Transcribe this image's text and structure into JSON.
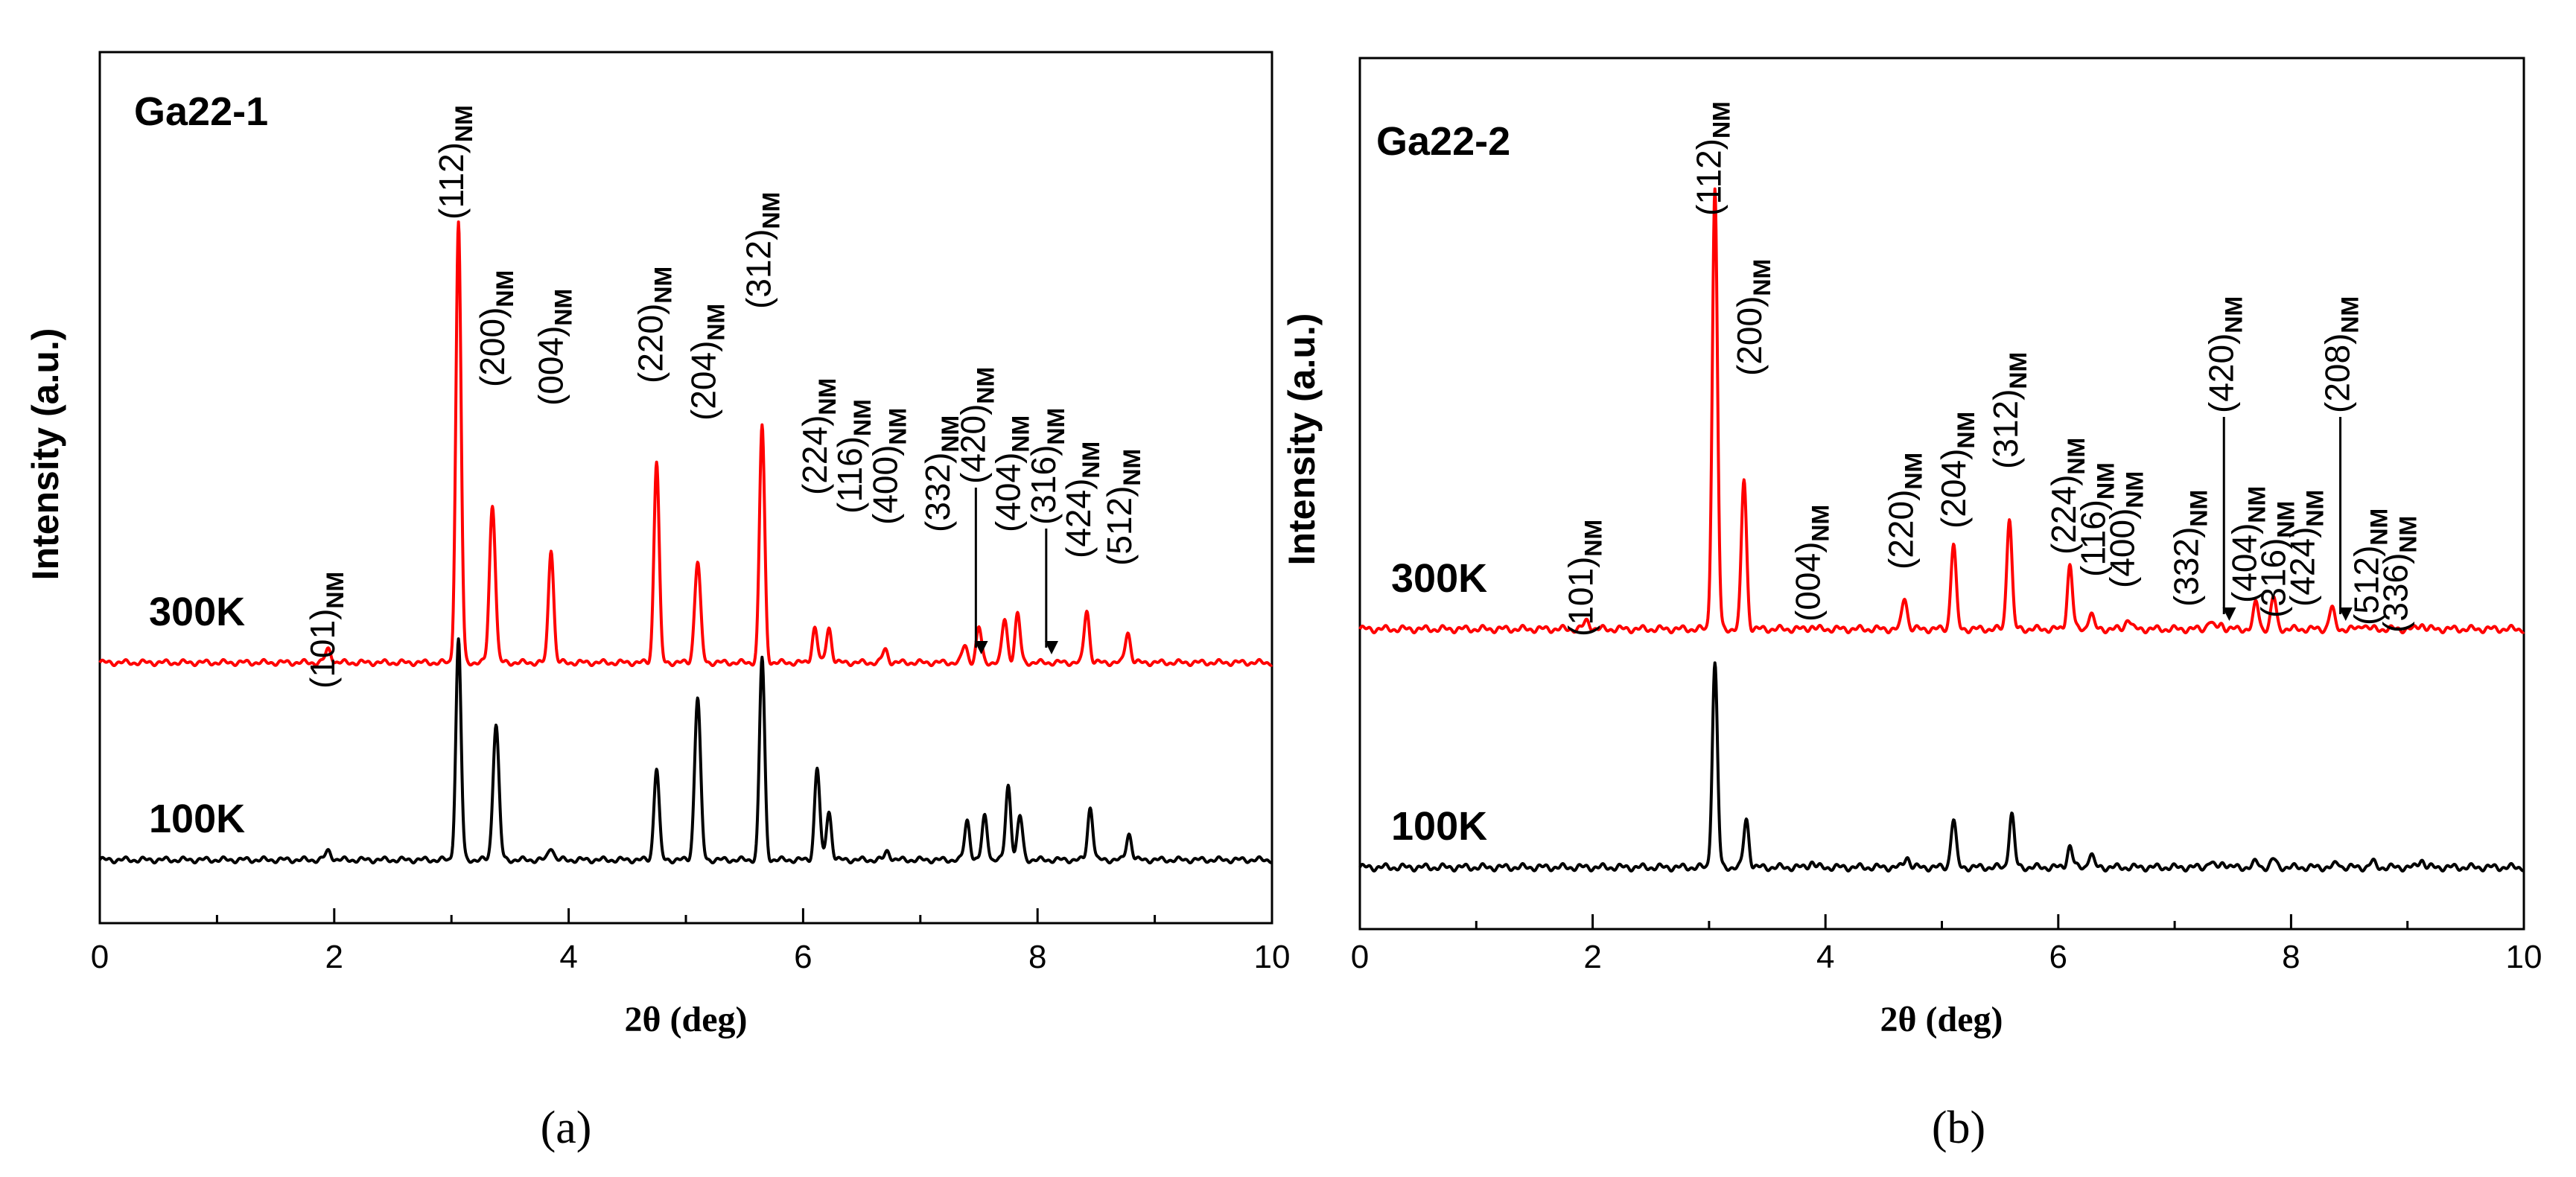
{
  "figure": {
    "panel_labels": [
      "(a)",
      "(b)"
    ]
  },
  "chart_data": [
    {
      "type": "line",
      "sample_label": "Ga22-1",
      "title": "",
      "xlabel": "2θ (deg)",
      "ylabel": "Intensity (a.u.)",
      "xlim": [
        0,
        10
      ],
      "x_ticks": [
        0,
        2,
        4,
        6,
        8,
        10
      ],
      "x_minor_step": 1,
      "grid": false,
      "series": [
        {
          "name": "300K",
          "color": "#ff0000",
          "baseline": 0.5,
          "peaks": [
            {
              "x": 1.95,
              "h": 0.03,
              "w": 0.025
            },
            {
              "x": 3.06,
              "h": 1.0,
              "w": 0.022
            },
            {
              "x": 3.35,
              "h": 0.36,
              "w": 0.025
            },
            {
              "x": 3.85,
              "h": 0.26,
              "w": 0.022
            },
            {
              "x": 4.75,
              "h": 0.46,
              "w": 0.022
            },
            {
              "x": 5.1,
              "h": 0.23,
              "w": 0.025
            },
            {
              "x": 5.65,
              "h": 0.54,
              "w": 0.022
            },
            {
              "x": 6.1,
              "h": 0.08,
              "w": 0.022
            },
            {
              "x": 6.22,
              "h": 0.08,
              "w": 0.022
            },
            {
              "x": 6.7,
              "h": 0.03,
              "w": 0.022
            },
            {
              "x": 7.38,
              "h": 0.04,
              "w": 0.022
            },
            {
              "x": 7.5,
              "h": 0.08,
              "w": 0.022
            },
            {
              "x": 7.72,
              "h": 0.1,
              "w": 0.022
            },
            {
              "x": 7.83,
              "h": 0.11,
              "w": 0.022
            },
            {
              "x": 8.42,
              "h": 0.12,
              "w": 0.022
            },
            {
              "x": 8.77,
              "h": 0.07,
              "w": 0.022
            }
          ]
        },
        {
          "name": "100K",
          "color": "#000000",
          "baseline": 0.05,
          "peaks": [
            {
              "x": 1.95,
              "h": 0.02,
              "w": 0.025
            },
            {
              "x": 3.06,
              "h": 0.5,
              "w": 0.022
            },
            {
              "x": 3.38,
              "h": 0.31,
              "w": 0.025
            },
            {
              "x": 3.85,
              "h": 0.03,
              "w": 0.022
            },
            {
              "x": 4.75,
              "h": 0.21,
              "w": 0.022
            },
            {
              "x": 5.1,
              "h": 0.37,
              "w": 0.025
            },
            {
              "x": 5.65,
              "h": 0.46,
              "w": 0.022
            },
            {
              "x": 6.12,
              "h": 0.21,
              "w": 0.022
            },
            {
              "x": 6.22,
              "h": 0.11,
              "w": 0.022
            },
            {
              "x": 6.72,
              "h": 0.02,
              "w": 0.022
            },
            {
              "x": 7.4,
              "h": 0.09,
              "w": 0.022
            },
            {
              "x": 7.55,
              "h": 0.1,
              "w": 0.022
            },
            {
              "x": 7.75,
              "h": 0.17,
              "w": 0.022
            },
            {
              "x": 7.85,
              "h": 0.1,
              "w": 0.022
            },
            {
              "x": 8.45,
              "h": 0.12,
              "w": 0.022
            },
            {
              "x": 8.78,
              "h": 0.06,
              "w": 0.022
            }
          ]
        }
      ],
      "peak_labels": [
        {
          "hkl": "(101)",
          "sub": "NM",
          "x": 2.0
        },
        {
          "hkl": "(112)",
          "sub": "NM",
          "x": 3.1
        },
        {
          "hkl": "(200)",
          "sub": "NM",
          "x": 3.45
        },
        {
          "hkl": "(004)",
          "sub": "NM",
          "x": 3.95
        },
        {
          "hkl": "(220)",
          "sub": "NM",
          "x": 4.8
        },
        {
          "hkl": "(204)",
          "sub": "NM",
          "x": 5.25
        },
        {
          "hkl": "(312)",
          "sub": "NM",
          "x": 5.72
        },
        {
          "hkl": "(224)",
          "sub": "NM",
          "x": 6.2
        },
        {
          "hkl": "(116)",
          "sub": "NM",
          "x": 6.5
        },
        {
          "hkl": "(400)",
          "sub": "NM",
          "x": 6.8
        },
        {
          "hkl": "(332)",
          "sub": "NM",
          "x": 7.25
        },
        {
          "hkl": "(420)",
          "sub": "NM",
          "x": 7.55
        },
        {
          "hkl": "(404)",
          "sub": "NM",
          "x": 7.85
        },
        {
          "hkl": "(316)",
          "sub": "NM",
          "x": 8.15
        },
        {
          "hkl": "(424)",
          "sub": "NM",
          "x": 8.45
        },
        {
          "hkl": "(512)",
          "sub": "NM",
          "x": 8.8
        }
      ]
    },
    {
      "type": "line",
      "sample_label": "Ga22-2",
      "title": "",
      "xlabel": "2θ (deg)",
      "ylabel": "Intensity (a.u.)",
      "xlim": [
        0,
        10
      ],
      "x_ticks": [
        0,
        2,
        4,
        6,
        8,
        10
      ],
      "x_minor_step": 1,
      "grid": false,
      "series": [
        {
          "name": "300K",
          "color": "#ff0000",
          "baseline": 0.46,
          "peaks": [
            {
              "x": 1.95,
              "h": 0.015,
              "w": 0.025
            },
            {
              "x": 3.05,
              "h": 0.82,
              "w": 0.022
            },
            {
              "x": 3.3,
              "h": 0.28,
              "w": 0.022
            },
            {
              "x": 3.88,
              "h": 0.005,
              "w": 0.022
            },
            {
              "x": 4.68,
              "h": 0.06,
              "w": 0.022
            },
            {
              "x": 5.1,
              "h": 0.16,
              "w": 0.022
            },
            {
              "x": 5.58,
              "h": 0.21,
              "w": 0.022
            },
            {
              "x": 6.1,
              "h": 0.12,
              "w": 0.022
            },
            {
              "x": 6.28,
              "h": 0.03,
              "w": 0.022
            },
            {
              "x": 6.6,
              "h": 0.02,
              "w": 0.022
            },
            {
              "x": 7.3,
              "h": 0.015,
              "w": 0.022
            },
            {
              "x": 7.4,
              "h": 0.01,
              "w": 0.022
            },
            {
              "x": 7.7,
              "h": 0.05,
              "w": 0.022
            },
            {
              "x": 7.85,
              "h": 0.06,
              "w": 0.022
            },
            {
              "x": 8.35,
              "h": 0.04,
              "w": 0.022
            },
            {
              "x": 8.62,
              "h": 0.01,
              "w": 0.022
            },
            {
              "x": 9.12,
              "h": 0.01,
              "w": 0.022
            }
          ]
        },
        {
          "name": "100K",
          "color": "#000000",
          "baseline": 0.06,
          "peaks": [
            {
              "x": 3.05,
              "h": 0.38,
              "w": 0.022
            },
            {
              "x": 3.32,
              "h": 0.09,
              "w": 0.022
            },
            {
              "x": 3.88,
              "h": 0.01,
              "w": 0.022
            },
            {
              "x": 4.7,
              "h": 0.02,
              "w": 0.022
            },
            {
              "x": 5.1,
              "h": 0.09,
              "w": 0.022
            },
            {
              "x": 5.6,
              "h": 0.1,
              "w": 0.022
            },
            {
              "x": 6.1,
              "h": 0.04,
              "w": 0.022
            },
            {
              "x": 6.28,
              "h": 0.025,
              "w": 0.022
            },
            {
              "x": 7.3,
              "h": 0.01,
              "w": 0.022
            },
            {
              "x": 7.42,
              "h": 0.01,
              "w": 0.022
            },
            {
              "x": 7.7,
              "h": 0.01,
              "w": 0.022
            },
            {
              "x": 7.85,
              "h": 0.015,
              "w": 0.022
            },
            {
              "x": 8.4,
              "h": 0.008,
              "w": 0.022
            },
            {
              "x": 8.7,
              "h": 0.01,
              "w": 0.022
            },
            {
              "x": 9.12,
              "h": 0.015,
              "w": 0.022
            }
          ]
        }
      ],
      "peak_labels": [
        {
          "hkl": "(101)",
          "sub": "NM",
          "x": 2.0
        },
        {
          "hkl": "(112)",
          "sub": "NM",
          "x": 3.1
        },
        {
          "hkl": "(200)",
          "sub": "NM",
          "x": 3.45
        },
        {
          "hkl": "(004)",
          "sub": "NM",
          "x": 3.95
        },
        {
          "hkl": "(220)",
          "sub": "NM",
          "x": 4.75
        },
        {
          "hkl": "(204)",
          "sub": "NM",
          "x": 5.2
        },
        {
          "hkl": "(312)",
          "sub": "NM",
          "x": 5.65
        },
        {
          "hkl": "(224)",
          "sub": "NM",
          "x": 6.15
        },
        {
          "hkl": "(116)",
          "sub": "NM",
          "x": 6.4
        },
        {
          "hkl": "(400)",
          "sub": "NM",
          "x": 6.65
        },
        {
          "hkl": "(332)",
          "sub": "NM",
          "x": 7.2
        },
        {
          "hkl": "(420)",
          "sub": "NM",
          "x": 7.5
        },
        {
          "hkl": "(404)",
          "sub": "NM",
          "x": 7.7
        },
        {
          "hkl": "(316)",
          "sub": "NM",
          "x": 7.95
        },
        {
          "hkl": "(424)",
          "sub": "NM",
          "x": 8.2
        },
        {
          "hkl": "(208)",
          "sub": "NM",
          "x": 8.5
        },
        {
          "hkl": "(512)",
          "sub": "NM",
          "x": 8.75
        },
        {
          "hkl": "(336)",
          "sub": "NM",
          "x": 9.0
        }
      ]
    }
  ]
}
